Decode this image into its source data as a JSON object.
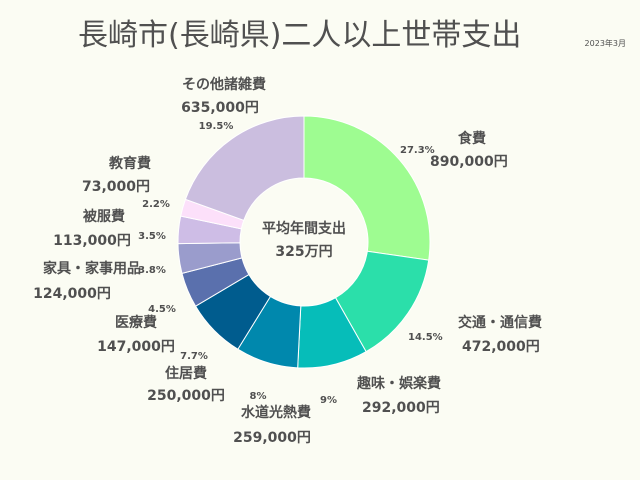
{
  "chart_data": {
    "type": "pie",
    "variant": "donut",
    "title": "長崎市(長崎県)二人以上世帯支出",
    "date": "2023年3月",
    "center_label": [
      "平均年間支出",
      "325万円"
    ],
    "slices": [
      {
        "name": "食費",
        "value_label": "890,000円",
        "value": 890000,
        "percent": 27.3,
        "percent_label": "27.3%",
        "color": "#9efc91"
      },
      {
        "name": "交通・通信費",
        "value_label": "472,000円",
        "value": 472000,
        "percent": 14.5,
        "percent_label": "14.5%",
        "color": "#2bdfaa"
      },
      {
        "name": "趣味・娯楽費",
        "value_label": "292,000円",
        "value": 292000,
        "percent": 9.0,
        "percent_label": "9%",
        "color": "#06bdb9"
      },
      {
        "name": "水道光熱費",
        "value_label": "259,000円",
        "value": 259000,
        "percent": 8.0,
        "percent_label": "8%",
        "color": "#0088ad"
      },
      {
        "name": "住居費",
        "value_label": "250,000円",
        "value": 250000,
        "percent": 7.7,
        "percent_label": "7.7%",
        "color": "#005c8e"
      },
      {
        "name": "医療費",
        "value_label": "147,000円",
        "value": 147000,
        "percent": 4.5,
        "percent_label": "4.5%",
        "color": "#5a70ad"
      },
      {
        "name": "家具・家事用品",
        "value_label": "124,000円",
        "value": 124000,
        "percent": 3.8,
        "percent_label": "3.8%",
        "color": "#9a9ccc"
      },
      {
        "name": "被服費",
        "value_label": "113,000円",
        "value": 113000,
        "percent": 3.5,
        "percent_label": "3.5%",
        "color": "#cebde6"
      },
      {
        "name": "教育費",
        "value_label": "73,000円",
        "value": 73000,
        "percent": 2.2,
        "percent_label": "2.2%",
        "color": "#fce0fa"
      },
      {
        "name": "その他諸雑費",
        "value_label": "635,000円",
        "value": 635000,
        "percent": 19.5,
        "percent_label": "19.5%",
        "color": "#cbbedf"
      }
    ]
  }
}
